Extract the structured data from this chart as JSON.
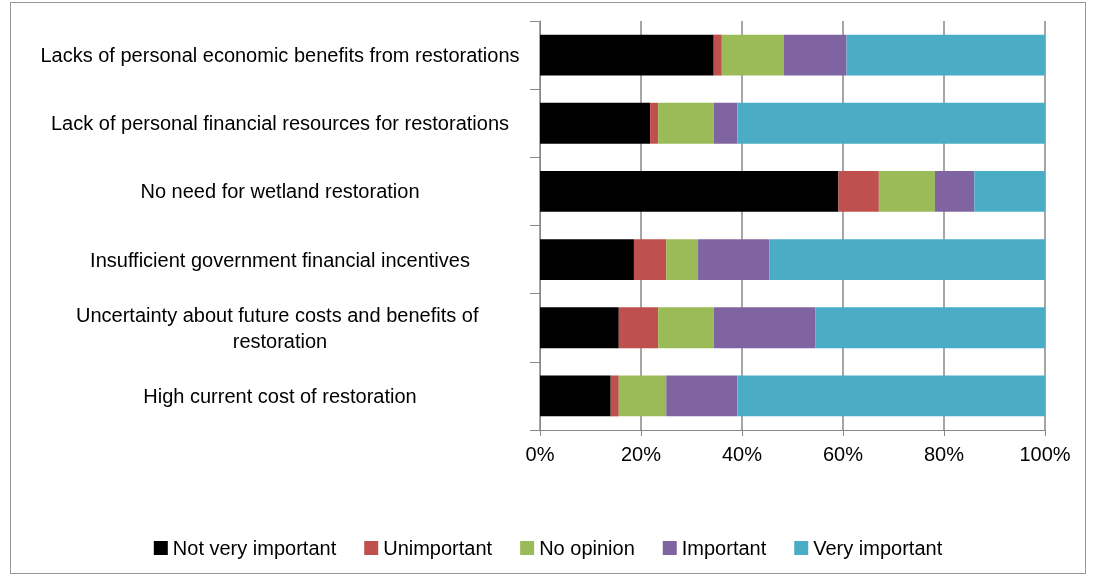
{
  "chart_data": {
    "type": "bar",
    "orientation": "horizontal",
    "stacked": true,
    "categories": [
      "Lacks of personal economic benefits from restorations",
      "Lack of personal financial resources for restorations",
      "No need for wetland restoration",
      "Insufficient government financial incentives",
      "Uncertainty about future costs and benefits of restoration",
      "High current cost of restoration"
    ],
    "series": [
      {
        "name": "Not very important",
        "color": "#000000",
        "values": [
          34.4,
          21.8,
          59.1,
          18.6,
          15.6,
          14.0
        ]
      },
      {
        "name": "Unimportant",
        "color": "#c0504d",
        "values": [
          1.6,
          1.6,
          8.0,
          6.4,
          7.8,
          1.6
        ]
      },
      {
        "name": "No opinion",
        "color": "#9bbb59",
        "values": [
          12.3,
          11.0,
          11.1,
          6.3,
          11.0,
          9.4
        ]
      },
      {
        "name": "Important",
        "color": "#8064a2",
        "values": [
          12.4,
          4.7,
          7.8,
          14.1,
          20.1,
          14.1
        ]
      },
      {
        "name": "Very important",
        "color": "#4bacc6",
        "values": [
          39.3,
          60.9,
          14.0,
          54.6,
          45.5,
          60.9
        ]
      }
    ],
    "xlim": [
      0,
      100
    ],
    "xticks": [
      {
        "value": 0,
        "label": "0%"
      },
      {
        "value": 20,
        "label": "20%"
      },
      {
        "value": 40,
        "label": "40%"
      },
      {
        "value": 60,
        "label": "60%"
      },
      {
        "value": 80,
        "label": "80%"
      },
      {
        "value": 100,
        "label": "100%"
      }
    ],
    "grid": "x",
    "legend": "bottom"
  }
}
